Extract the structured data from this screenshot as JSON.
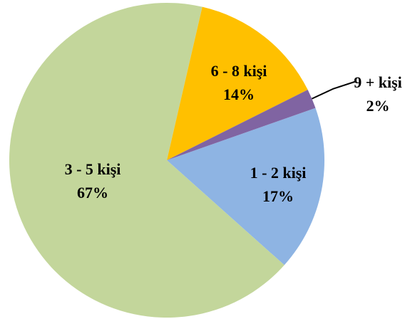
{
  "chart_data": {
    "type": "pie",
    "categories": [
      "1 - 2 kişi",
      "3 - 5 kişi",
      "6 - 8 kişi",
      "9 + kişi"
    ],
    "values": [
      17,
      67,
      14,
      2
    ],
    "value_labels": [
      "17%",
      "67%",
      "14%",
      "2%"
    ],
    "colors": [
      "#8eb4e3",
      "#c3d69b",
      "#ffc000",
      "#8064a2"
    ]
  }
}
